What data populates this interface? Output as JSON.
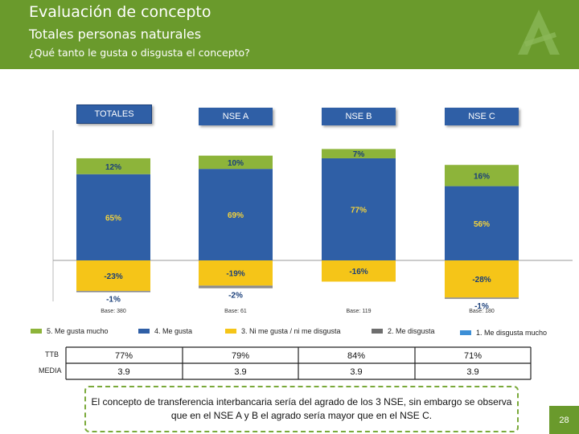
{
  "header": {
    "title": "Evaluación de concepto",
    "subtitle": "Totales personas naturales",
    "question": "¿Qué tanto le gusta o disgusta el concepto?"
  },
  "colors": {
    "green": "#8db43a",
    "blue": "#2f5fa6",
    "yellow": "#f5c518",
    "gray": "#8c8c8c",
    "lightblue": "#3d8fd6",
    "header": "#6a9a2c"
  },
  "chart_data": {
    "type": "bar",
    "stacked": true,
    "categories": [
      "TOTALES",
      "NSE A",
      "NSE B",
      "NSE C"
    ],
    "series": [
      {
        "name": "5. Me gusta mucho",
        "values": [
          12,
          10,
          7,
          16
        ],
        "color": "#8db43a"
      },
      {
        "name": "4. Me gusta",
        "values": [
          65,
          69,
          77,
          56
        ],
        "color": "#2f5fa6"
      },
      {
        "name": "3. Ni me gusta / ni me disgusta",
        "values": [
          -23,
          -19,
          -16,
          -28
        ],
        "color": "#f5c518"
      },
      {
        "name": "2. Me disgusta",
        "values": [
          -1,
          -2,
          0,
          -1
        ],
        "color": "#8c8c8c"
      },
      {
        "name": "1. Me disgusta mucho",
        "values": [
          0,
          0,
          0,
          0
        ],
        "color": "#3d8fd6"
      }
    ],
    "bases": [
      "Base: 380",
      "Base: 61",
      "Base: 119",
      "Base: 180"
    ],
    "segment_labels": [
      [
        "12%",
        "65%",
        "-23%",
        "-1%"
      ],
      [
        "10%",
        "69%",
        "-19%",
        "-2%"
      ],
      [
        "7%",
        "77%",
        "-16%",
        ""
      ],
      [
        "16%",
        "56%",
        "-28%",
        "-1%"
      ]
    ]
  },
  "legend": [
    {
      "label": "5. Me gusta mucho",
      "color": "#8db43a"
    },
    {
      "label": "4. Me gusta",
      "color": "#2f5fa6"
    },
    {
      "label": "3. Ni me gusta / ni me disgusta",
      "color": "#f5c518"
    },
    {
      "label": "2. Me disgusta",
      "color": "#6e6e6e"
    },
    {
      "label": "1. Me disgusta mucho",
      "color": "#3d8fd6"
    }
  ],
  "table": {
    "ttb_label": "TTB",
    "media_label": "MEDIA",
    "ttb": [
      "77%",
      "79%",
      "84%",
      "71%"
    ],
    "media": [
      "3.9",
      "3.9",
      "3.9",
      "3.9"
    ]
  },
  "note": "El concepto de transferencia interbancaria sería del agrado de los 3 NSE, sin embargo se observa que en el NSE A y B el agrado sería mayor que en el NSE C.",
  "page_number": "28"
}
